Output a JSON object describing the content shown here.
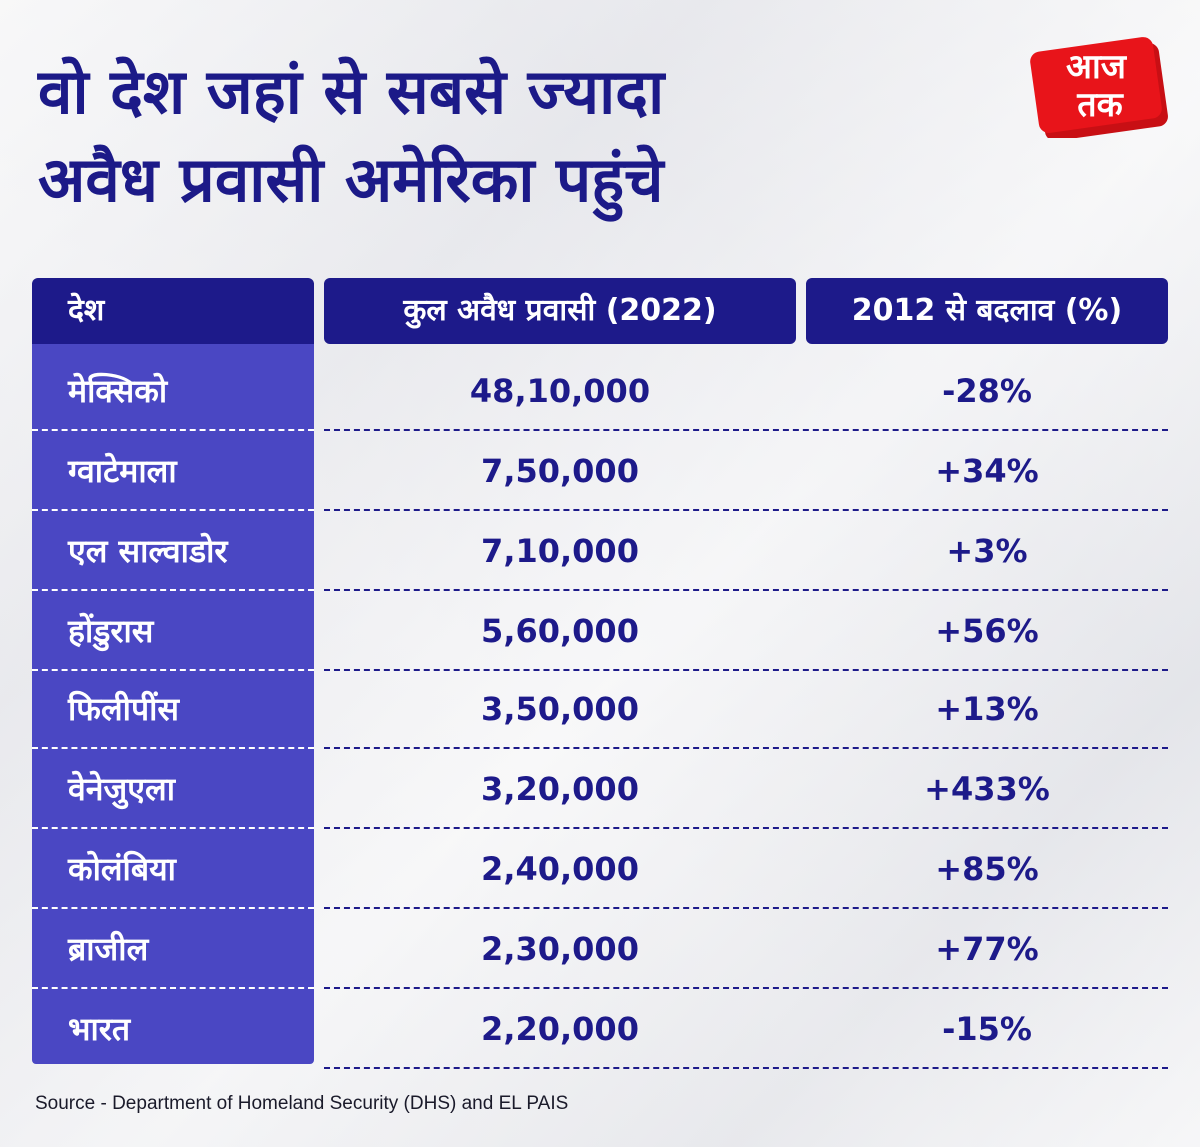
{
  "title": {
    "line1": "वो देश जहां से सबसे ज्यादा",
    "line2": "अवैध प्रवासी अमेरिका पहुंचे"
  },
  "logo": {
    "icon": "aajtak-logo",
    "text_line1": "आज",
    "text_line2": "तक",
    "color": "#e8141a"
  },
  "table": {
    "headers": [
      "देश",
      "कुल अवैध प्रवासी (2022)",
      "2012 से बदलाव (%)"
    ],
    "rows": [
      {
        "country": "मेक्सिको",
        "total": "48,10,000",
        "change": "-28%"
      },
      {
        "country": "ग्वाटेमाला",
        "total": "7,50,000",
        "change": "+34%"
      },
      {
        "country": "एल साल्वाडोर",
        "total": "7,10,000",
        "change": "+3%"
      },
      {
        "country": "होंडुरास",
        "total": "5,60,000",
        "change": "+56%"
      },
      {
        "country": "फिलीपींस",
        "total": "3,50,000",
        "change": "+13%"
      },
      {
        "country": "वेनेजुएला",
        "total": "3,20,000",
        "change": "+433%"
      },
      {
        "country": "कोलंबिया",
        "total": "2,40,000",
        "change": "+85%"
      },
      {
        "country": "ब्राजील",
        "total": "2,30,000",
        "change": "+77%"
      },
      {
        "country": "भारत",
        "total": "2,20,000",
        "change": "-15%"
      }
    ]
  },
  "source": "Source - Department of Homeland Security (DHS) and EL PAIS",
  "colors": {
    "navy": "#1d1a8a",
    "column_blue": "#4a47c3",
    "brand_red": "#e8141a"
  }
}
